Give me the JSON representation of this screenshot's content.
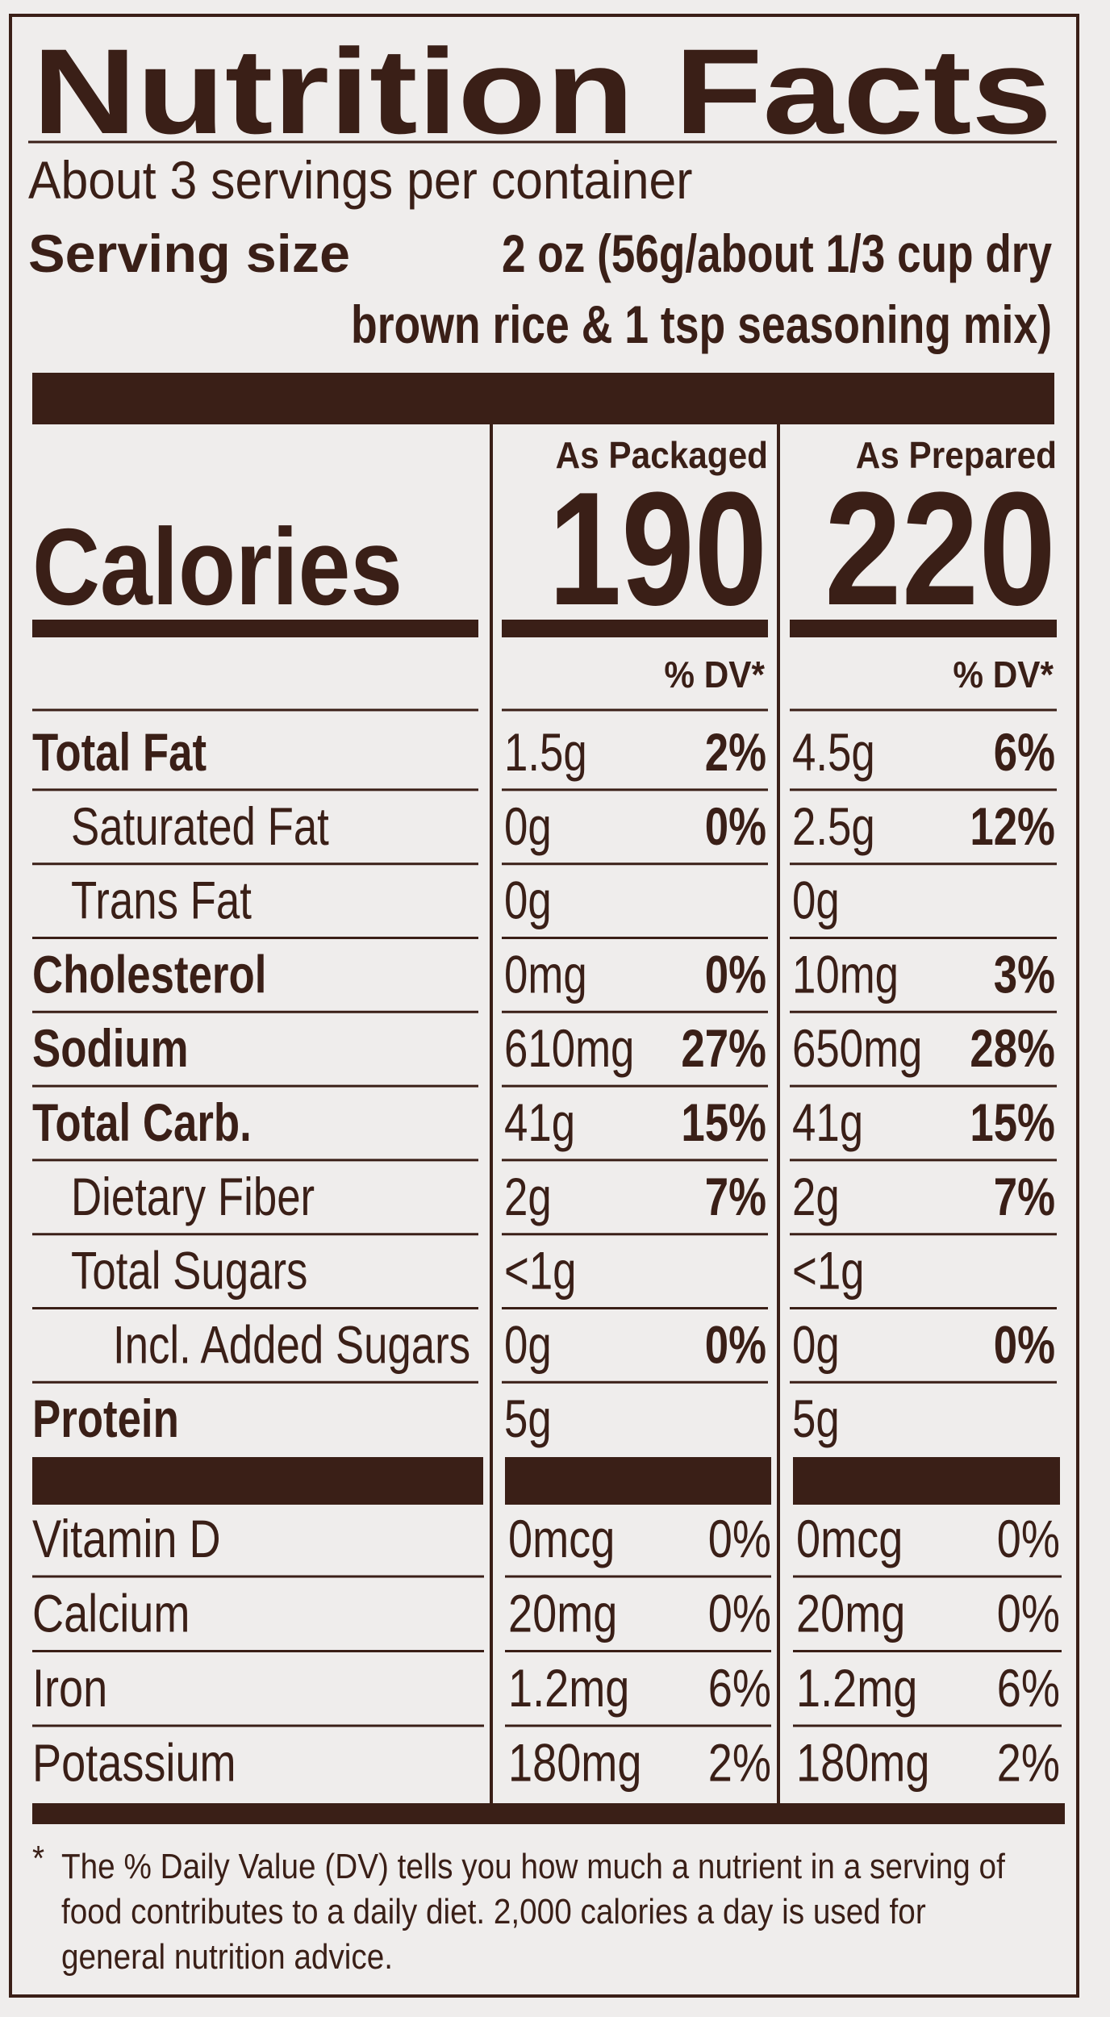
{
  "title": "Nutrition Facts",
  "servings": "About 3 servings per container",
  "serving_size": {
    "label": "Serving size",
    "value_lines": [
      "2 oz (56g/about 1/3 cup dry",
      "brown rice & 1 tsp seasoning mix)"
    ]
  },
  "columns": [
    "As Packaged",
    "As Prepared"
  ],
  "calories": {
    "label": "Calories",
    "values": [
      "190",
      "220"
    ]
  },
  "dv_header": [
    "% DV*",
    "% DV*"
  ],
  "nutrients": [
    {
      "name": "Total Fat",
      "values": [
        [
          "1.5g",
          "2%"
        ],
        [
          "4.5g",
          "6%"
        ]
      ]
    },
    {
      "name": "Saturated Fat",
      "values": [
        [
          "0g",
          "0%"
        ],
        [
          "2.5g",
          "12%"
        ]
      ]
    },
    {
      "name": "Trans Fat",
      "values": [
        [
          "0g"
        ],
        [
          "0g"
        ]
      ]
    },
    {
      "name": "Cholesterol",
      "values": [
        [
          "0mg",
          "0%"
        ],
        [
          "10mg",
          "3%"
        ]
      ]
    },
    {
      "name": "Sodium",
      "values": [
        [
          "610mg",
          "27%"
        ],
        [
          "650mg",
          "28%"
        ]
      ]
    },
    {
      "name": "Total Carb.",
      "values": [
        [
          "41g",
          "15%"
        ],
        [
          "41g",
          "15%"
        ]
      ]
    },
    {
      "name": "Dietary Fiber",
      "values": [
        [
          "2g",
          "7%"
        ],
        [
          "2g",
          "7%"
        ]
      ]
    },
    {
      "name": "Total Sugars",
      "values": [
        [
          "<1g"
        ],
        [
          "<1g"
        ]
      ]
    },
    {
      "name": "Incl. Added Sugars",
      "values": [
        [
          "0g",
          "0%"
        ],
        [
          "0g",
          "0%"
        ]
      ]
    },
    {
      "name": "Protein",
      "values": [
        [
          "5g"
        ],
        [
          "5g"
        ]
      ]
    }
  ],
  "vitamins": [
    {
      "name": "Vitamin D",
      "values": [
        [
          "0mcg",
          "0%"
        ],
        [
          "0mcg",
          "0%"
        ]
      ]
    },
    {
      "name": "Calcium",
      "values": [
        [
          "20mg",
          "0%"
        ],
        [
          "20mg",
          "0%"
        ]
      ]
    },
    {
      "name": "Iron",
      "values": [
        [
          "1.2mg",
          "6%"
        ],
        [
          "1.2mg",
          "6%"
        ]
      ]
    },
    {
      "name": "Potassium",
      "values": [
        [
          "180mg",
          "2%"
        ],
        [
          "180mg",
          "2%"
        ]
      ]
    }
  ],
  "footnote": {
    "marker": "*",
    "lines": [
      "The % Daily Value (DV) tells you how much a nutrient in a serving of",
      "food contributes to a daily diet. 2,000 calories a day is used for",
      "general nutrition advice."
    ]
  }
}
